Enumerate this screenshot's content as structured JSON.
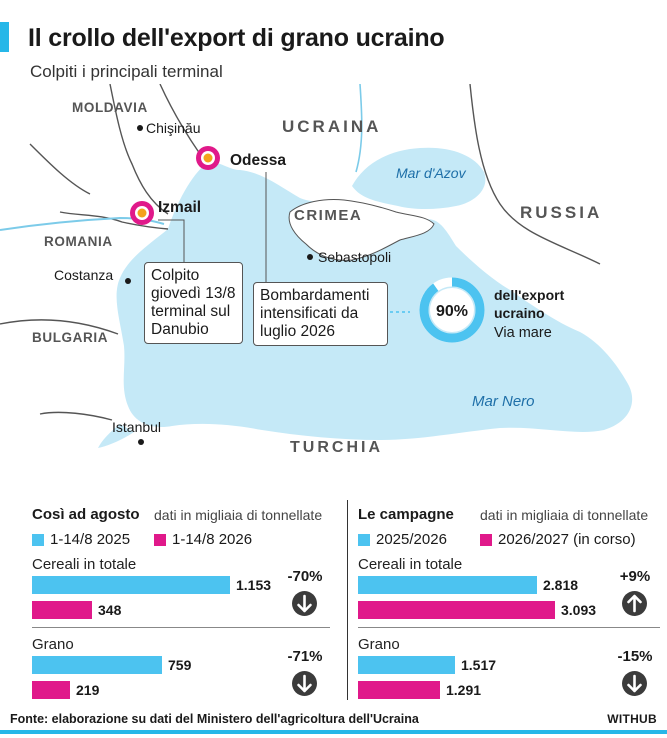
{
  "header": {
    "title": "Il crollo dell'export di grano ucraino",
    "subtitle": "Colpiti i principali terminal"
  },
  "colors": {
    "accent": "#26b7e8",
    "series_a": "#4cc3f0",
    "series_b": "#e0198a",
    "sea": "#c5e9f7",
    "land": "#ffffff",
    "border": "#555555",
    "dark": "#3b3b3b"
  },
  "map": {
    "countries": {
      "moldavia": "MOLDAVIA",
      "ucraina": "UCRAINA",
      "romania": "ROMANIA",
      "crimea": "CRIMEA",
      "russia": "RUSSIA",
      "bulgaria": "BULGARIA",
      "turchia": "TURCHIA"
    },
    "cities": {
      "chisinau": "Chişinău",
      "odessa": "Odessa",
      "izmail": "Izmail",
      "costanza": "Costanza",
      "sebastopoli": "Sebastopoli",
      "istanbul": "Istanbul"
    },
    "seas": {
      "azov": "Mar d'Azov",
      "nero": "Mar Nero"
    },
    "callouts": {
      "izmail": "Colpito giovedì 13/8 terminal sul Danubio",
      "odessa": "Bombardamenti intensificati da luglio 2026"
    },
    "share": {
      "value": 90,
      "label": "90%",
      "line1": "dell'export",
      "line2": "ucraino",
      "line3": "Via mare"
    }
  },
  "panels": {
    "left": {
      "title": "Così ad agosto",
      "note": "dati in migliaia di tonnellate",
      "legend_a": "1-14/8 2025",
      "legend_b": "1-14/8 2026"
    },
    "right": {
      "title": "Le campagne",
      "note": "dati in migliaia di tonnellate",
      "legend_a": "2025/2026",
      "legend_b": "2026/2027 (in corso)"
    }
  },
  "chart_data": [
    {
      "type": "bar",
      "orientation": "horizontal",
      "unit": "migliaia di tonnellate",
      "categories": [
        "Cereali in totale",
        "Grano"
      ],
      "series": [
        {
          "name": "1-14/8 2025",
          "values": [
            1153,
            759
          ],
          "labels": [
            "1.153",
            "759"
          ]
        },
        {
          "name": "1-14/8 2026",
          "values": [
            348,
            219
          ],
          "labels": [
            "348",
            "219"
          ]
        }
      ],
      "changes": [
        "-70%",
        "-71%"
      ],
      "change_direction": [
        "down",
        "down"
      ]
    },
    {
      "type": "bar",
      "orientation": "horizontal",
      "unit": "migliaia di tonnellate",
      "categories": [
        "Cereali in totale",
        "Grano"
      ],
      "series": [
        {
          "name": "2025/2026",
          "values": [
            2818,
            1517
          ],
          "labels": [
            "2.818",
            "1.517"
          ]
        },
        {
          "name": "2026/2027 (in corso)",
          "values": [
            3093,
            1291
          ],
          "labels": [
            "3.093",
            "1.291"
          ]
        }
      ],
      "changes": [
        "+9%",
        "-15%"
      ],
      "change_direction": [
        "up",
        "down"
      ]
    }
  ],
  "footer": {
    "source": "Fonte: elaborazione su dati del Ministero dell'agricoltura dell'Ucraina",
    "brand": "WITHUB"
  }
}
